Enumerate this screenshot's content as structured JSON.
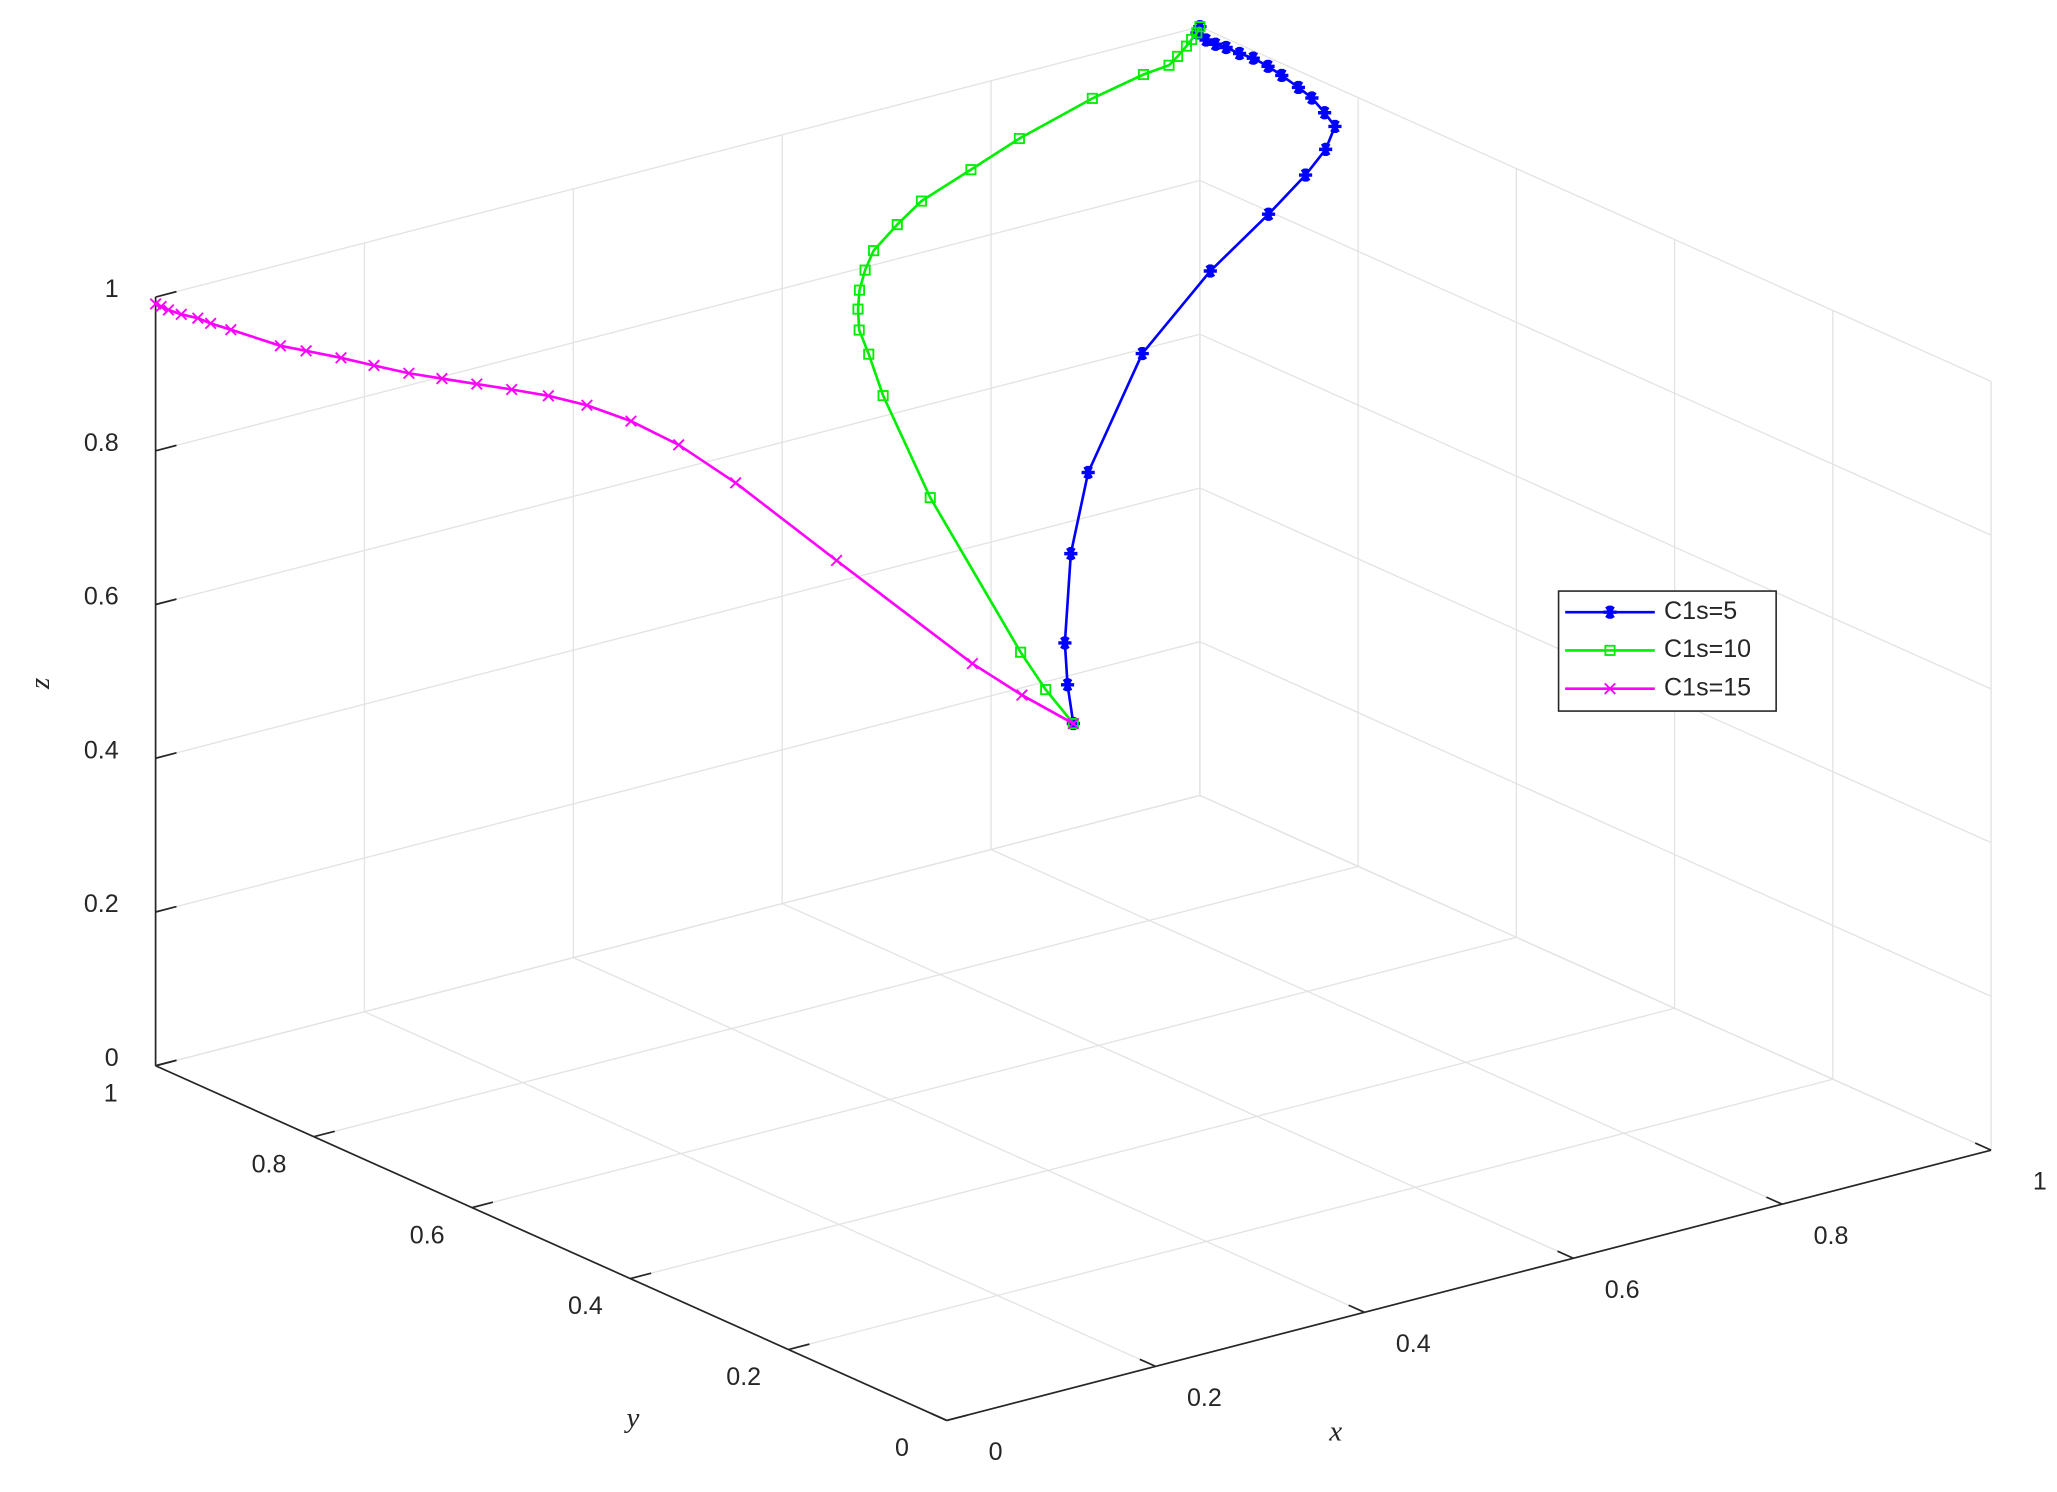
{
  "chart_data": {
    "type": "line3d",
    "xlabel": "x",
    "ylabel": "y",
    "zlabel": "z",
    "xlim": [
      0,
      1
    ],
    "ylim": [
      0,
      1
    ],
    "zlim": [
      0,
      1
    ],
    "xticks": [
      0,
      0.2,
      0.4,
      0.6,
      0.8,
      1
    ],
    "yticks": [
      0,
      0.2,
      0.4,
      0.6,
      0.8,
      1
    ],
    "zticks": [
      0,
      0.2,
      0.4,
      0.6,
      0.8,
      1
    ],
    "grid": true,
    "legend": "east",
    "series": [
      {
        "name": "C1s=5",
        "color": "#0000ff",
        "marker": "*",
        "x": [
          1,
          0.995,
          0.993,
          0.993,
          0.994,
          0.994,
          0.995,
          0.994,
          0.992,
          0.989,
          0.986,
          0.98,
          0.974,
          0.956,
          0.933,
          0.896,
          0.841,
          0.766,
          0.671,
          0.612,
          0.551,
          0.524,
          0.5
        ],
        "y": [
          1,
          0.997,
          0.983,
          0.971,
          0.959,
          0.942,
          0.926,
          0.906,
          0.886,
          0.861,
          0.84,
          0.816,
          0.795,
          0.783,
          0.778,
          0.776,
          0.777,
          0.764,
          0.707,
          0.651,
          0.578,
          0.539,
          0.5
        ],
        "z": [
          1,
          0.995,
          0.993,
          0.993,
          0.994,
          0.994,
          0.995,
          0.994,
          0.992,
          0.989,
          0.986,
          0.98,
          0.974,
          0.956,
          0.933,
          0.896,
          0.841,
          0.766,
          0.671,
          0.612,
          0.551,
          0.524,
          0.5
        ]
      },
      {
        "name": "C1s=10",
        "color": "#00ee00",
        "marker": "s",
        "x": [
          1,
          0.994,
          0.986,
          0.978,
          0.965,
          0.953,
          0.927,
          0.872,
          0.79,
          0.733,
          0.675,
          0.642,
          0.608,
          0.59,
          0.574,
          0.562,
          0.551,
          0.545,
          0.533,
          0.513,
          0.498,
          0.497,
          0.5
        ],
        "y": [
          1,
          0.996,
          0.992,
          0.988,
          0.982,
          0.977,
          0.975,
          0.967,
          0.951,
          0.937,
          0.923,
          0.91,
          0.895,
          0.882,
          0.868,
          0.854,
          0.838,
          0.818,
          0.784,
          0.698,
          0.564,
          0.531,
          0.5
        ],
        "z": [
          1,
          0.996,
          0.992,
          0.988,
          0.982,
          0.977,
          0.975,
          0.967,
          0.951,
          0.937,
          0.923,
          0.91,
          0.895,
          0.882,
          0.868,
          0.854,
          0.838,
          0.818,
          0.784,
          0.698,
          0.564,
          0.531,
          0.5
        ]
      },
      {
        "name": "C1s=15",
        "color": "#ff00ff",
        "marker": "x",
        "x": [
          0,
          0.003,
          0.007,
          0.014,
          0.023,
          0.03,
          0.041,
          0.068,
          0.082,
          0.101,
          0.119,
          0.138,
          0.156,
          0.175,
          0.194,
          0.214,
          0.235,
          0.259,
          0.285,
          0.316,
          0.371,
          0.445,
          0.472,
          0.5
        ],
        "y": [
          1,
          0.997,
          0.993,
          0.986,
          0.977,
          0.97,
          0.959,
          0.932,
          0.918,
          0.899,
          0.881,
          0.862,
          0.844,
          0.825,
          0.806,
          0.786,
          0.765,
          0.741,
          0.715,
          0.684,
          0.629,
          0.555,
          0.528,
          0.5
        ],
        "z": [
          0.991,
          0.988,
          0.984,
          0.979,
          0.975,
          0.969,
          0.962,
          0.944,
          0.939,
          0.932,
          0.924,
          0.916,
          0.911,
          0.906,
          0.901,
          0.895,
          0.885,
          0.867,
          0.839,
          0.793,
          0.698,
          0.572,
          0.534,
          0.5
        ]
      }
    ]
  }
}
